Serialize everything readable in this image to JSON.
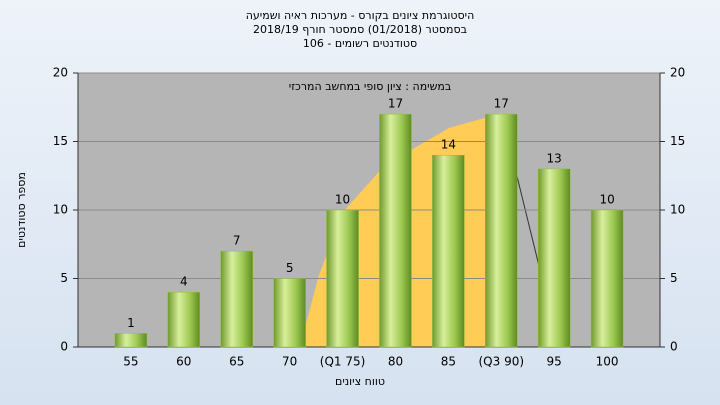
{
  "chart_data": {
    "type": "bar",
    "title": [
      "היסטוגרמת ציונים בקורס - מערכות ראיה ושמיעה",
      "בסמסטר (01/2018) סמסטר חורף 2018/19",
      "סטודנטים רשומים - 106"
    ],
    "annotation": "במשימה : ציון סופי במחשב המרכזי",
    "y_label": "מספר סטודנטים",
    "x_label": "טווח ציונים",
    "categories": [
      "55",
      "60",
      "65",
      "70",
      "(Q1 75)",
      "80",
      "85",
      "(Q3 90)",
      "95",
      "100"
    ],
    "values": [
      1,
      4,
      7,
      5,
      10,
      17,
      14,
      17,
      13,
      10
    ],
    "color": "#8fbf3f",
    "ylim": [
      0,
      20
    ],
    "yticks": [
      0,
      5,
      10,
      15,
      20
    ],
    "y2lim": [
      0,
      20
    ],
    "y2ticks": [
      0,
      5,
      10,
      15,
      20
    ],
    "grid": true
  }
}
